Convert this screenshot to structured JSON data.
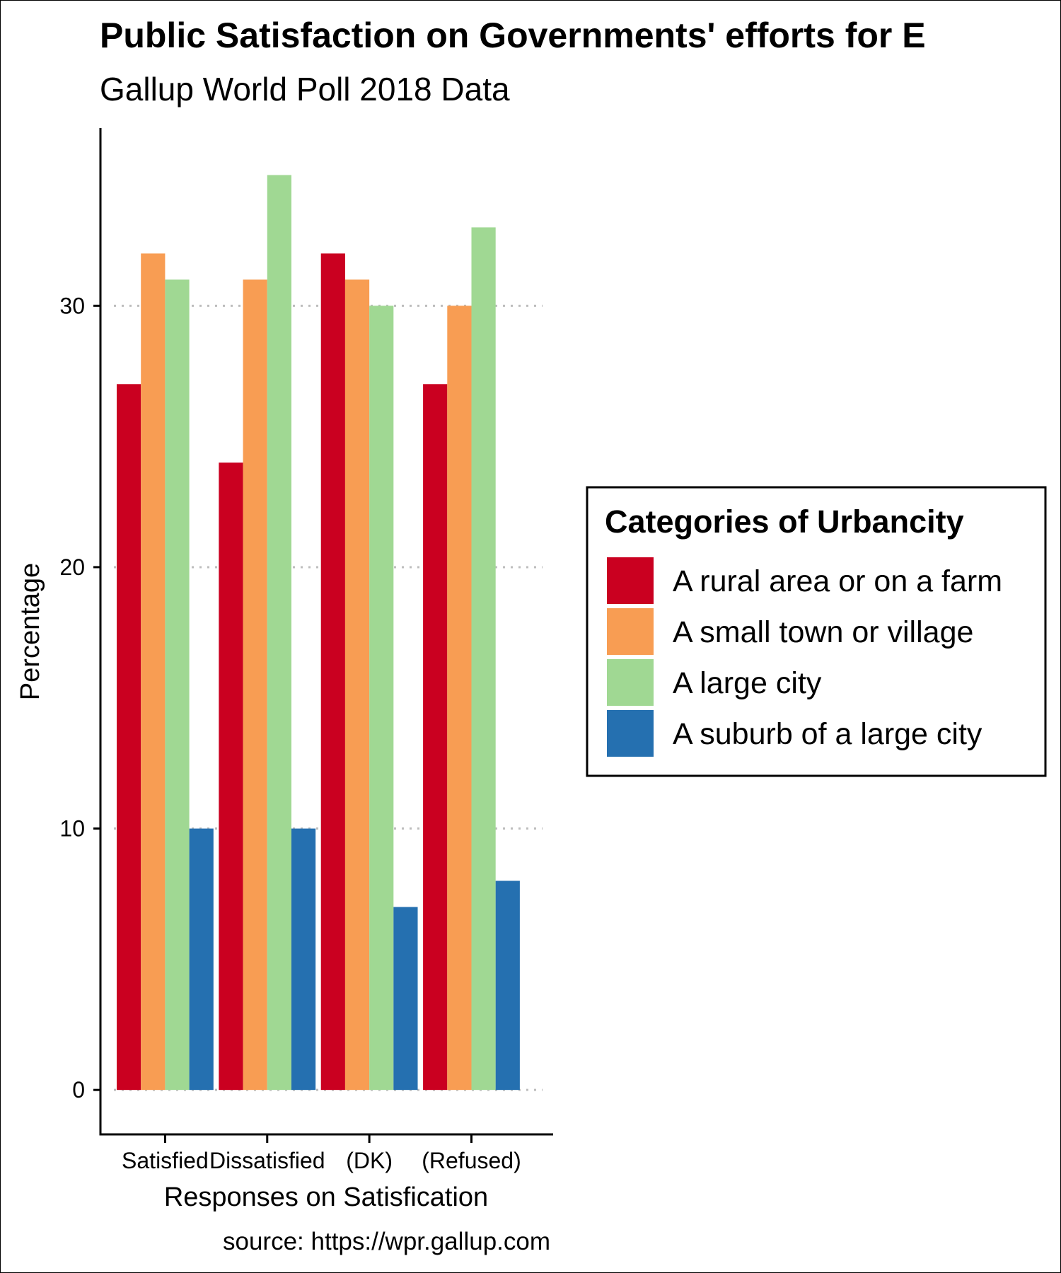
{
  "chart_data": {
    "type": "bar",
    "title": "Public Satisfaction on Governments' efforts for E",
    "subtitle": "Gallup World Poll 2018 Data",
    "xlabel": "Responses on Satisfication",
    "ylabel": "Percentage",
    "caption": "source: https://wpr.gallup.com",
    "categories": [
      "Satisfied",
      "Dissatisfied",
      "(DK)",
      "(Refused)"
    ],
    "series": [
      {
        "name": "A rural area or on a farm",
        "color": "#ca0020",
        "values": [
          27,
          24,
          32,
          27
        ]
      },
      {
        "name": "A small town or village",
        "color": "#f89d53",
        "values": [
          32,
          31,
          31,
          30
        ]
      },
      {
        "name": "A large city",
        "color": "#a0d893",
        "values": [
          31,
          35,
          30,
          33
        ]
      },
      {
        "name": "A suburb of a large city",
        "color": "#2570b0",
        "values": [
          10,
          10,
          7,
          8
        ]
      }
    ],
    "ylim": [
      -1.7,
      36.8
    ],
    "yticks": [
      0,
      10,
      20,
      30
    ],
    "grid": "horizontal dotted",
    "legend": {
      "title": "Categories of Urbancity",
      "position": "right"
    }
  }
}
